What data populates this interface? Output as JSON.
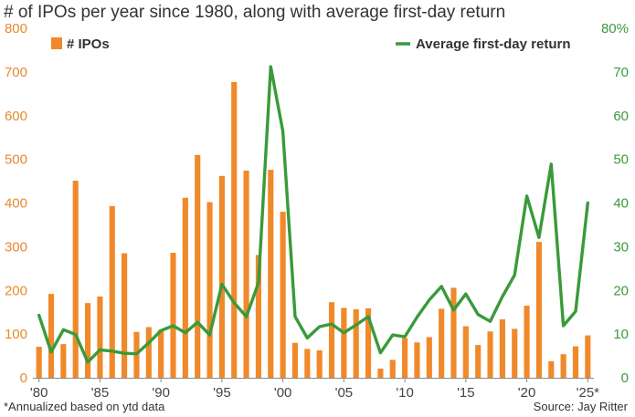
{
  "chart_data": {
    "type": "bar+line",
    "title": "# of IPOs per year since 1980, along with average first-day return",
    "x": [
      1980,
      1981,
      1982,
      1983,
      1984,
      1985,
      1986,
      1987,
      1988,
      1989,
      1990,
      1991,
      1992,
      1993,
      1994,
      1995,
      1996,
      1997,
      1998,
      1999,
      2000,
      2001,
      2002,
      2003,
      2004,
      2005,
      2006,
      2007,
      2008,
      2009,
      2010,
      2011,
      2012,
      2013,
      2014,
      2015,
      2016,
      2017,
      2018,
      2019,
      2020,
      2021,
      2022,
      2023,
      2024,
      2025
    ],
    "series": [
      {
        "name": "# IPOs",
        "type": "bar",
        "axis": "left",
        "color": "#f0892a",
        "values": [
          71,
          192,
          77,
          451,
          171,
          186,
          393,
          285,
          105,
          116,
          110,
          286,
          412,
          510,
          402,
          462,
          677,
          474,
          281,
          476,
          380,
          80,
          66,
          63,
          173,
          160,
          157,
          159,
          21,
          41,
          91,
          81,
          93,
          158,
          206,
          118,
          75,
          106,
          134,
          112,
          165,
          311,
          38,
          54,
          72,
          97
        ]
      },
      {
        "name": "Average first-day return",
        "type": "line",
        "axis": "right",
        "color": "#3a9a3a",
        "values": [
          14.3,
          5.9,
          11.0,
          9.9,
          3.6,
          6.4,
          6.1,
          5.6,
          5.5,
          8.0,
          10.8,
          11.9,
          10.3,
          12.7,
          9.8,
          21.4,
          17.2,
          14.0,
          21.7,
          71.2,
          56.4,
          14.0,
          9.1,
          11.7,
          12.3,
          10.3,
          12.1,
          14.0,
          5.7,
          9.8,
          9.4,
          13.9,
          17.8,
          20.9,
          15.5,
          19.2,
          14.5,
          12.9,
          18.6,
          23.5,
          41.6,
          32.1,
          48.9,
          11.9,
          15.2,
          40.0
        ]
      }
    ],
    "ylim_left": [
      0,
      800
    ],
    "yticks_left": [
      "0",
      "100",
      "200",
      "300",
      "400",
      "500",
      "600",
      "700",
      "800"
    ],
    "ylim_right": [
      0,
      80
    ],
    "yticks_right": [
      "0",
      "10",
      "20",
      "30",
      "40",
      "50",
      "60",
      "70",
      "80%"
    ],
    "xtick_years": [
      1980,
      1985,
      1990,
      1995,
      2000,
      2005,
      2010,
      2015,
      2020,
      2025
    ],
    "xtick_labels": [
      "'80",
      "'85",
      "'90",
      "'95",
      "'00",
      "'05",
      "'10",
      "'15",
      "'20",
      "'25*"
    ],
    "legend": [
      {
        "label": "# IPOs",
        "color": "#f0892a",
        "placement": "top-left"
      },
      {
        "label": "Average first-day return",
        "color": "#3a9a3a",
        "placement": "top-right"
      }
    ],
    "grid": false
  },
  "footnote": "*Annualized based on ytd data",
  "source": "Source: Jay Ritter"
}
